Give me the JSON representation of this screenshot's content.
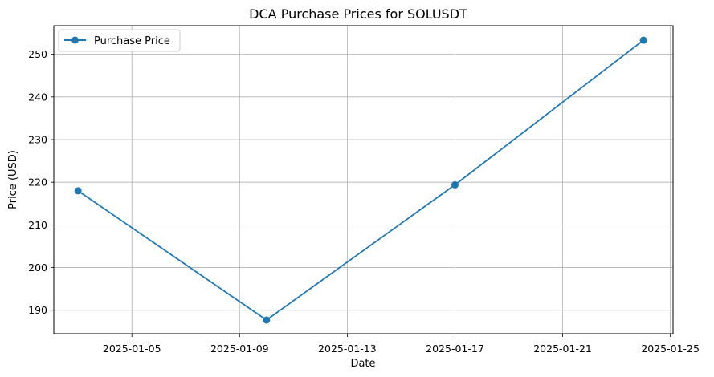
{
  "chart_data": {
    "type": "line",
    "title": "DCA Purchase Prices for SOLUSDT",
    "xlabel": "Date",
    "ylabel": "Price (USD)",
    "x_ticks": [
      "2025-01-05",
      "2025-01-09",
      "2025-01-13",
      "2025-01-17",
      "2025-01-21",
      "2025-01-25"
    ],
    "y_ticks": [
      190,
      200,
      210,
      220,
      230,
      240,
      250
    ],
    "xlim": [
      "2025-01-02",
      "2025-01-25"
    ],
    "ylim": [
      184.5,
      256.7
    ],
    "grid": true,
    "legend_position": "top-left",
    "series": [
      {
        "name": "Purchase Price",
        "color": "#1f77b4",
        "marker": "circle",
        "points": [
          {
            "x": "2025-01-03",
            "y": 218.0
          },
          {
            "x": "2025-01-10",
            "y": 187.7
          },
          {
            "x": "2025-01-17",
            "y": 219.4
          },
          {
            "x": "2025-01-24",
            "y": 253.3
          }
        ]
      }
    ]
  }
}
